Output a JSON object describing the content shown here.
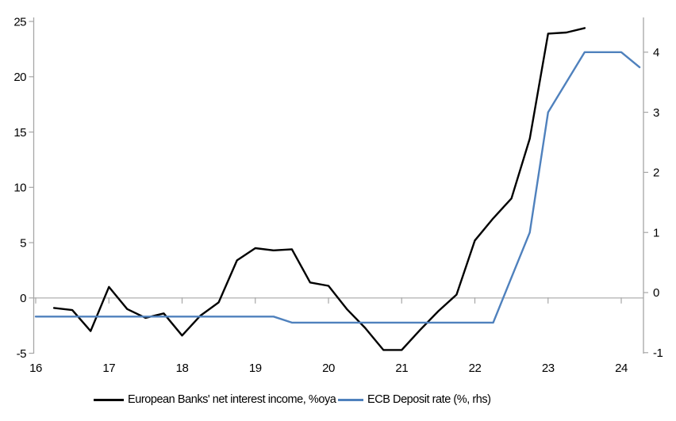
{
  "chart_data": {
    "type": "line",
    "title": "",
    "grid": "horizontal-zero-line-only",
    "legend_position": "bottom",
    "x_axis": {
      "ticks": [
        16,
        17,
        18,
        19,
        20,
        21,
        22,
        23,
        24
      ],
      "range": [
        16,
        24.35
      ]
    },
    "left_axis": {
      "ticks": [
        -5,
        0,
        5,
        10,
        15,
        20,
        25
      ],
      "range": [
        -5,
        25
      ]
    },
    "right_axis": {
      "ticks": [
        -1,
        0,
        1,
        2,
        3,
        4
      ],
      "range": [
        -1,
        4.6
      ]
    },
    "series": [
      {
        "name": "European Banks' net interest income, %oya",
        "axis": "left",
        "color": "#000000",
        "x": [
          16.25,
          16.5,
          16.75,
          17.0,
          17.25,
          17.5,
          17.75,
          18.0,
          18.25,
          18.5,
          18.75,
          19.0,
          19.25,
          19.5,
          19.75,
          20.0,
          20.25,
          20.5,
          20.75,
          21.0,
          21.25,
          21.5,
          21.75,
          22.0,
          22.25,
          22.5,
          22.75,
          23.0,
          23.25,
          23.5
        ],
        "values": [
          -0.9,
          -1.1,
          -3.0,
          1.0,
          -1.0,
          -1.8,
          -1.4,
          -3.4,
          -1.6,
          -0.4,
          3.4,
          4.5,
          4.3,
          4.4,
          1.4,
          1.1,
          -1.0,
          -2.7,
          -4.7,
          -4.7,
          -2.9,
          -1.2,
          0.3,
          5.2,
          7.2,
          9.0,
          14.4,
          23.9,
          24.0,
          24.4
        ]
      },
      {
        "name": "ECB Deposit rate (%, rhs)",
        "axis": "right",
        "color": "#4f81bd",
        "x": [
          16.0,
          16.25,
          16.5,
          16.75,
          17.0,
          17.25,
          17.5,
          17.75,
          18.0,
          18.25,
          18.5,
          18.75,
          19.0,
          19.25,
          19.5,
          19.75,
          20.0,
          20.25,
          20.5,
          20.75,
          21.0,
          21.25,
          21.5,
          21.75,
          22.0,
          22.25,
          22.5,
          22.75,
          23.0,
          23.25,
          23.5,
          23.75,
          24.0,
          24.25
        ],
        "values": [
          -0.4,
          -0.4,
          -0.4,
          -0.4,
          -0.4,
          -0.4,
          -0.4,
          -0.4,
          -0.4,
          -0.4,
          -0.4,
          -0.4,
          -0.4,
          -0.4,
          -0.5,
          -0.5,
          -0.5,
          -0.5,
          -0.5,
          -0.5,
          -0.5,
          -0.5,
          -0.5,
          -0.5,
          -0.5,
          -0.5,
          0.25,
          1.0,
          3.0,
          3.5,
          4.0,
          4.0,
          4.0,
          3.75
        ]
      }
    ]
  },
  "colors": {
    "axis_line": "#a6a6a6",
    "zero_gridline": "#b7b7b7",
    "tick_label": "#000000",
    "background": "#ffffff"
  }
}
